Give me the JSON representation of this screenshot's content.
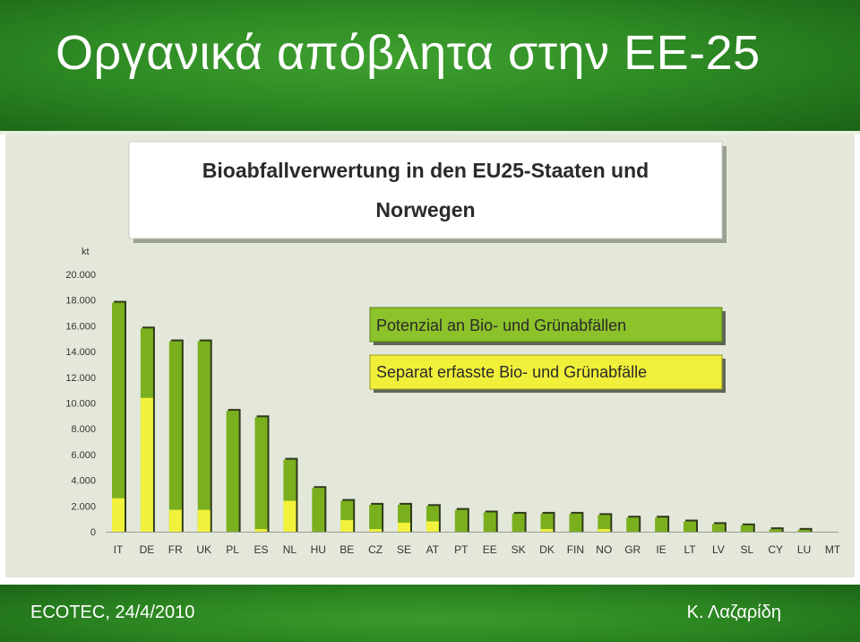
{
  "slide": {
    "title": "Οργανικά απόβλητα στην ΕΕ-25",
    "footer_left": "ECOTEC, 24/4/2010",
    "footer_right": "Κ. Λαζαρίδη"
  },
  "colors": {
    "header_green": "#2e8a24",
    "potential_bar": "#7ab01e",
    "separate_bar": "#f2f23c",
    "legend_potential_bg": "#8cc22a",
    "legend_separate_bg": "#f0f03a",
    "panel_bg": "#e4e8db"
  },
  "chart_data": {
    "type": "bar",
    "title": "Bioabfallverwertung in den EU25-Staaten und Norwegen",
    "y_unit": "kt",
    "ylim": [
      0,
      20000
    ],
    "y_ticks": [
      "0",
      "2.000",
      "4.000",
      "6.000",
      "8.000",
      "10.000",
      "12.000",
      "14.000",
      "16.000",
      "18.000",
      "20.000"
    ],
    "categories": [
      "IT",
      "DE",
      "FR",
      "UK",
      "PL",
      "ES",
      "NL",
      "HU",
      "BE",
      "CZ",
      "SE",
      "AT",
      "PT",
      "EE",
      "SK",
      "DK",
      "FIN",
      "NO",
      "GR",
      "IE",
      "LT",
      "LV",
      "SL",
      "CY",
      "LU",
      "MT"
    ],
    "legend_position": "top-right",
    "series": [
      {
        "name": "Potenzial an Bio- und Grünabfällen",
        "values": [
          17800,
          15800,
          14800,
          14800,
          9400,
          8900,
          5600,
          3400,
          2400,
          2100,
          2100,
          2000,
          1700,
          1500,
          1400,
          1400,
          1400,
          1300,
          1100,
          1100,
          800,
          600,
          500,
          200,
          150,
          0
        ]
      },
      {
        "name": "Separat erfasste Bio- und Grünabfälle",
        "values": [
          2600,
          10400,
          1700,
          1700,
          0,
          200,
          2400,
          0,
          900,
          200,
          700,
          800,
          0,
          0,
          0,
          200,
          0,
          200,
          0,
          0,
          0,
          0,
          0,
          0,
          0,
          0
        ]
      }
    ]
  }
}
